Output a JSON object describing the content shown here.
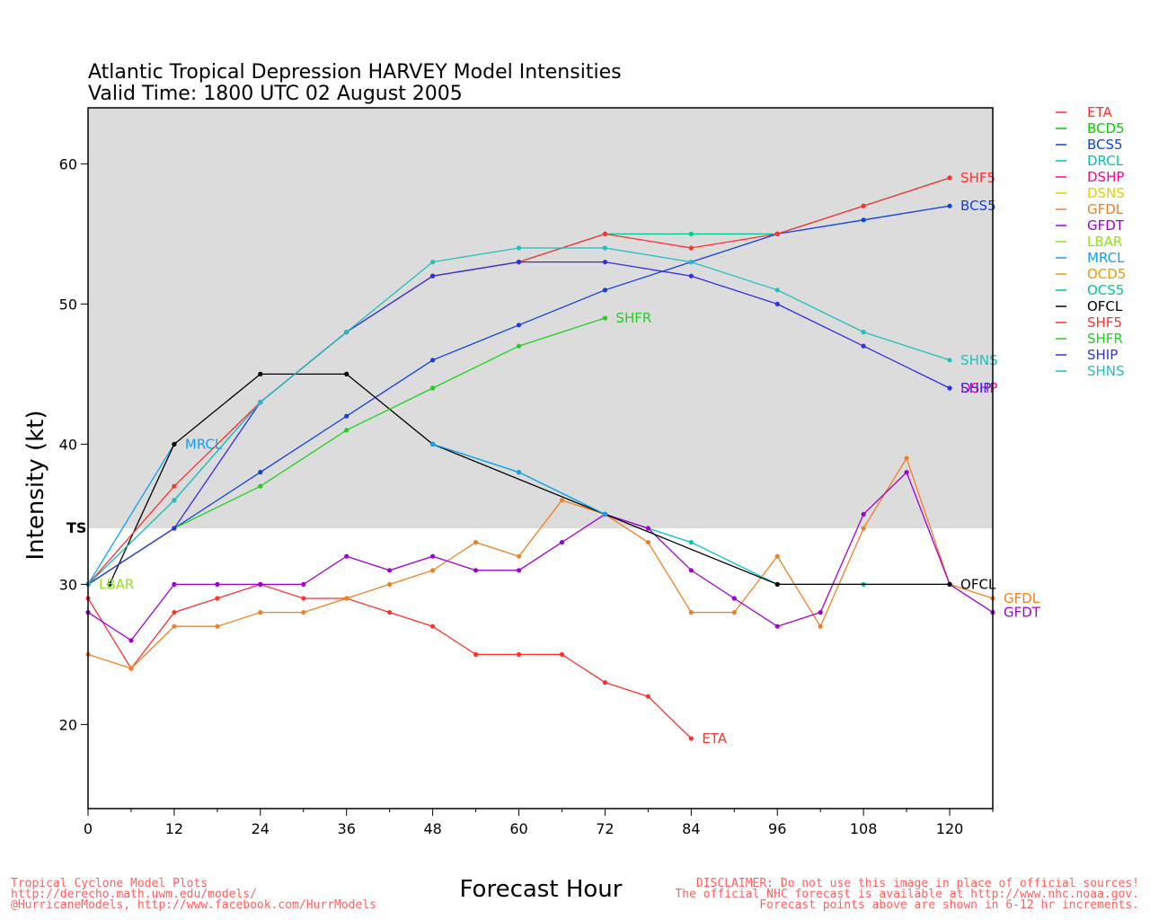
{
  "header": {
    "title_line1": "Atlantic Tropical Depression HARVEY Model Intensities",
    "title_line2": "Valid Time: 1800 UTC 02 August 2005"
  },
  "footer": {
    "left": [
      "Tropical Cyclone Model Plots",
      "http://derecho.math.uwm.edu/models/",
      "@HurricaneModels, http://www.facebook.com/HurrModels"
    ],
    "right": [
      "DISCLAIMER: Do not use this image in place of official sources!",
      "The official NHC forecast is available at http://www.nhc.noaa.gov.",
      "Forecast points above are shown in 6-12 hr increments."
    ]
  },
  "chart_data": {
    "type": "line",
    "xlabel": "Forecast Hour",
    "ylabel": "Intensity (kt)",
    "xlim": [
      0,
      126
    ],
    "ylim": [
      14,
      64
    ],
    "xticks": [
      0,
      12,
      24,
      36,
      48,
      60,
      72,
      84,
      96,
      108,
      120
    ],
    "yticks": [
      20,
      30,
      40,
      50,
      60
    ],
    "ts_threshold": 34,
    "ts_label": "TS",
    "shading": {
      "above_ts": "#dcdcdc"
    },
    "grid": false,
    "legend": "right",
    "series": [
      {
        "name": "ETA",
        "color": "#ff3030",
        "points": [
          [
            0,
            29
          ],
          [
            6,
            24
          ],
          [
            12,
            28
          ],
          [
            18,
            29
          ],
          [
            24,
            30
          ],
          [
            30,
            29
          ],
          [
            36,
            29
          ],
          [
            42,
            28
          ],
          [
            48,
            27
          ],
          [
            54,
            25
          ],
          [
            60,
            25
          ],
          [
            66,
            25
          ],
          [
            72,
            23
          ],
          [
            78,
            22
          ],
          [
            84,
            19
          ]
        ],
        "label": "ETA"
      },
      {
        "name": "BCD5",
        "color": "#00cc00",
        "points": [],
        "label": ""
      },
      {
        "name": "BCS5",
        "color": "#1040e0",
        "points": [
          [
            0,
            30
          ],
          [
            12,
            34
          ],
          [
            24,
            38
          ],
          [
            36,
            42
          ],
          [
            48,
            46
          ],
          [
            60,
            48.5
          ],
          [
            72,
            51
          ],
          [
            84,
            53
          ],
          [
            96,
            55
          ],
          [
            108,
            56
          ],
          [
            120,
            57
          ]
        ],
        "label": "BCS5"
      },
      {
        "name": "DRCL",
        "color": "#00c0c0",
        "points": [
          [
            48,
            40
          ],
          [
            60,
            38
          ],
          [
            72,
            35
          ],
          [
            84,
            33
          ],
          [
            96,
            30
          ],
          [
            108,
            30
          ],
          [
            120,
            30
          ]
        ],
        "label": ""
      },
      {
        "name": "DSHP",
        "color": "#ff0090",
        "points": [
          [
            120,
            44
          ]
        ],
        "label": "DSHP"
      },
      {
        "name": "DSNS",
        "color": "#e0d000",
        "points": [],
        "label": ""
      },
      {
        "name": "GFDL",
        "color": "#f08020",
        "points": [
          [
            0,
            25
          ],
          [
            6,
            24
          ],
          [
            12,
            27
          ],
          [
            18,
            27
          ],
          [
            24,
            28
          ],
          [
            30,
            28
          ],
          [
            36,
            29
          ],
          [
            42,
            30
          ],
          [
            48,
            31
          ],
          [
            54,
            33
          ],
          [
            60,
            32
          ],
          [
            66,
            36
          ],
          [
            72,
            35
          ],
          [
            78,
            33
          ],
          [
            84,
            28
          ],
          [
            90,
            28
          ],
          [
            96,
            32
          ],
          [
            102,
            27
          ],
          [
            108,
            34
          ],
          [
            114,
            39
          ],
          [
            120,
            30
          ],
          [
            126,
            29
          ]
        ],
        "label": "GFDL"
      },
      {
        "name": "GFDT",
        "color": "#a000d0",
        "points": [
          [
            0,
            28
          ],
          [
            6,
            26
          ],
          [
            12,
            30
          ],
          [
            18,
            30
          ],
          [
            24,
            30
          ],
          [
            30,
            30
          ],
          [
            36,
            32
          ],
          [
            42,
            31
          ],
          [
            48,
            32
          ],
          [
            54,
            31
          ],
          [
            60,
            31
          ],
          [
            66,
            33
          ],
          [
            72,
            35
          ],
          [
            78,
            34
          ],
          [
            84,
            31
          ],
          [
            90,
            29
          ],
          [
            96,
            27
          ],
          [
            102,
            28
          ],
          [
            108,
            35
          ],
          [
            114,
            38
          ],
          [
            120,
            30
          ],
          [
            126,
            28
          ]
        ],
        "label": "GFDT"
      },
      {
        "name": "LBAR",
        "color": "#90e020",
        "points": [
          [
            0,
            30
          ]
        ],
        "label": "LBAR"
      },
      {
        "name": "MRCL",
        "color": "#10a0f0",
        "points": [
          [
            0,
            30
          ],
          [
            12,
            40
          ]
        ],
        "label": "MRCL"
      },
      {
        "name": "OCD5",
        "color": "#e0a000",
        "points": [],
        "label": ""
      },
      {
        "name": "OCS5",
        "color": "#00c890",
        "points": [
          [
            0,
            30
          ],
          [
            12,
            36
          ],
          [
            24,
            43
          ],
          [
            36,
            48
          ],
          [
            48,
            52
          ],
          [
            60,
            53
          ],
          [
            72,
            55
          ],
          [
            84,
            55
          ],
          [
            96,
            55
          ],
          [
            108,
            57
          ],
          [
            120,
            59
          ]
        ],
        "label": ""
      },
      {
        "name": "OFCL",
        "color": "#000000",
        "points": [
          [
            3,
            30
          ],
          [
            12,
            40
          ],
          [
            24,
            45
          ],
          [
            36,
            45
          ],
          [
            48,
            40
          ],
          [
            72,
            35
          ],
          [
            96,
            30
          ],
          [
            120,
            30
          ]
        ],
        "label": "OFCL"
      },
      {
        "name": "SHF5",
        "color": "#ff3030",
        "points": [
          [
            0,
            30
          ],
          [
            12,
            37
          ],
          [
            24,
            43
          ],
          [
            36,
            48
          ],
          [
            48,
            52
          ],
          [
            60,
            53
          ],
          [
            72,
            55
          ],
          [
            84,
            54
          ],
          [
            96,
            55
          ],
          [
            108,
            57
          ],
          [
            120,
            59
          ]
        ],
        "label": "SHF5"
      },
      {
        "name": "SHFR",
        "color": "#20d020",
        "points": [
          [
            0,
            30
          ],
          [
            12,
            34
          ],
          [
            24,
            37
          ],
          [
            36,
            41
          ],
          [
            48,
            44
          ],
          [
            60,
            47
          ],
          [
            72,
            49
          ]
        ],
        "label": "SHFR"
      },
      {
        "name": "SHIP",
        "color": "#3030e0",
        "points": [
          [
            0,
            30
          ],
          [
            12,
            34
          ],
          [
            24,
            43
          ],
          [
            36,
            48
          ],
          [
            48,
            52
          ],
          [
            60,
            53
          ],
          [
            72,
            53
          ],
          [
            84,
            52
          ],
          [
            96,
            50
          ],
          [
            108,
            47
          ],
          [
            120,
            44
          ]
        ],
        "label": "SHIP"
      },
      {
        "name": "SHNS",
        "color": "#20c0c0",
        "points": [
          [
            0,
            30
          ],
          [
            12,
            36
          ],
          [
            24,
            43
          ],
          [
            36,
            48
          ],
          [
            48,
            53
          ],
          [
            60,
            54
          ],
          [
            72,
            54
          ],
          [
            84,
            53
          ],
          [
            96,
            51
          ],
          [
            108,
            48
          ],
          [
            120,
            46
          ]
        ],
        "label": "SHNS"
      }
    ],
    "overlaps": [
      {
        "series": "MRCL",
        "points": [
          [
            48,
            40
          ],
          [
            60,
            38
          ],
          [
            72,
            35
          ]
        ]
      }
    ]
  }
}
